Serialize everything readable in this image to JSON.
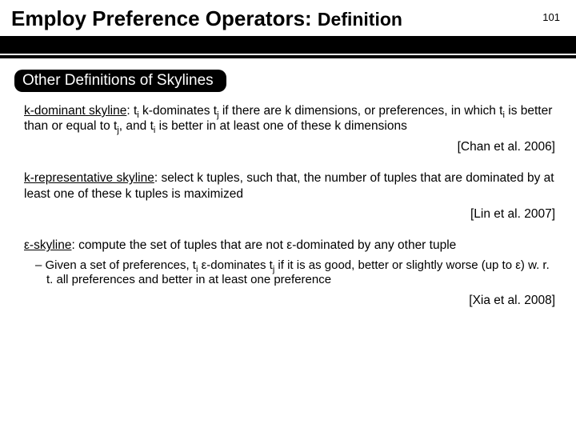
{
  "header": {
    "title_main": "Employ Preference Operators: ",
    "title_sub": "Definition",
    "page_number": "101"
  },
  "section": {
    "label": "Other Definitions of Skylines"
  },
  "definitions": [
    {
      "term": "k-dominant skyline",
      "text_before_sub1": ": t",
      "sub1": "i",
      "text_mid1": " k-dominates t",
      "sub2": "j",
      "text_mid2": " if there are k dimensions, or preferences, in which t",
      "sub3": "i",
      "text_mid3": " is better than or equal to t",
      "sub4": "j",
      "text_mid4": ", and t",
      "sub5": "i",
      "text_after": " is better in at least one of these k dimensions",
      "citation": "[Chan et al. 2006]"
    },
    {
      "term": "k-representative skyline",
      "text": ": select k tuples, such that, the number of tuples that are dominated by at least one of these k tuples is maximized",
      "citation": "[Lin et al. 2007]"
    },
    {
      "term": "ε-skyline",
      "text": ": compute the set of tuples that are not ε-dominated by any other tuple",
      "bullet_prefix": "– ",
      "bullet_before_sub1": "Given a set of preferences, t",
      "bsub1": "i",
      "bullet_mid1": " ε-dominates t",
      "bsub2": "j",
      "bullet_after": " if it is as good, better or slightly worse (up to ε) w. r. t. all preferences and better in at least one preference",
      "citation": "[Xia et al. 2008]"
    }
  ]
}
